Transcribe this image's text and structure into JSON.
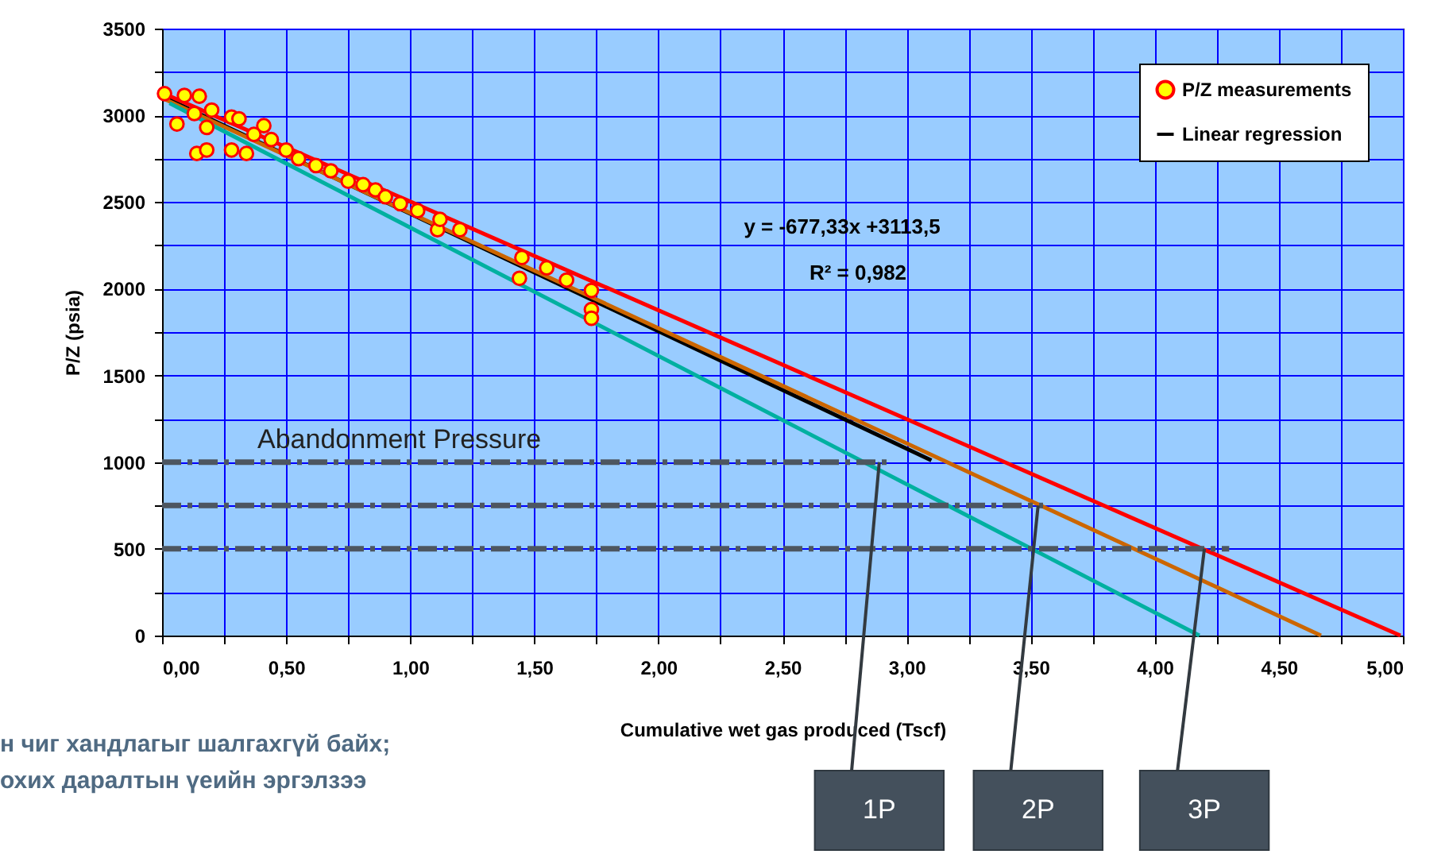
{
  "chart_data": {
    "type": "scatter",
    "xlabel": "Cumulative wet gas produced (Tscf)",
    "ylabel": "P/Z (psia)",
    "xlim": [
      0,
      5
    ],
    "ylim": [
      0,
      3500
    ],
    "xticks": [
      {
        "value": 0,
        "label": "0,00"
      },
      {
        "value": 0.25,
        "label": null
      },
      {
        "value": 0.5,
        "label": "0,50"
      },
      {
        "value": 0.75,
        "label": null
      },
      {
        "value": 1,
        "label": "1,00"
      },
      {
        "value": 1.25,
        "label": null
      },
      {
        "value": 1.5,
        "label": "1,50"
      },
      {
        "value": 1.75,
        "label": null
      },
      {
        "value": 2,
        "label": "2,00"
      },
      {
        "value": 2.25,
        "label": null
      },
      {
        "value": 2.5,
        "label": "2,50"
      },
      {
        "value": 2.75,
        "label": null
      },
      {
        "value": 3,
        "label": "3,00"
      },
      {
        "value": 3.25,
        "label": null
      },
      {
        "value": 3.5,
        "label": "3,50"
      },
      {
        "value": 3.75,
        "label": null
      },
      {
        "value": 4,
        "label": "4,00"
      },
      {
        "value": 4.25,
        "label": null
      },
      {
        "value": 4.5,
        "label": "4,50"
      },
      {
        "value": 4.75,
        "label": null
      },
      {
        "value": 5,
        "label": "5,00"
      }
    ],
    "yticks": [
      0,
      {
        "value": 250,
        "label": null
      },
      500,
      {
        "value": 750,
        "label": null
      },
      1000,
      {
        "value": 1250,
        "label": null
      },
      1500,
      {
        "value": 1750,
        "label": null
      },
      2000,
      {
        "value": 2250,
        "label": null
      },
      2500,
      {
        "value": 2750,
        "label": null
      },
      3000,
      {
        "value": 3250,
        "label": null
      },
      3500
    ],
    "grid": true,
    "legend": "top right",
    "series": [
      {
        "name": "P/Z measurements",
        "marker": "circle",
        "color": "#ffff00",
        "x": [
          0.01,
          0.09,
          0.15,
          0.06,
          0.14,
          0.18,
          0.28,
          0.34,
          0.2,
          0.28,
          0.31,
          0.41,
          0.18,
          0.13,
          0.37,
          0.44,
          0.5,
          0.55,
          0.62,
          0.68,
          0.75,
          0.81,
          0.86,
          0.9,
          0.96,
          1.03,
          1.11,
          1.12,
          1.2,
          1.44,
          1.45,
          1.55,
          1.63,
          1.73,
          1.73,
          1.73
        ],
        "values": [
          3125,
          3115,
          3110,
          2950,
          2780,
          2800,
          2800,
          2780,
          3030,
          2990,
          2980,
          2940,
          2930,
          3010,
          2890,
          2860,
          2800,
          2750,
          2710,
          2680,
          2620,
          2600,
          2570,
          2530,
          2490,
          2450,
          2340,
          2400,
          2340,
          2060,
          2180,
          2120,
          2050,
          1990,
          1880,
          1830
        ]
      },
      {
        "name": "Linear regression",
        "type": "line",
        "color": "#000000",
        "x": [
          0,
          3.1
        ],
        "values": [
          3110,
          1010
        ]
      },
      {
        "type": "line",
        "color": "#ff0000",
        "x": [
          0,
          4.99
        ],
        "values": [
          3130,
          0
        ]
      },
      {
        "type": "line",
        "color": "#cc6600",
        "x": [
          0,
          4.67
        ],
        "values": [
          3100,
          0
        ]
      },
      {
        "type": "line",
        "color": "#00b0a0",
        "x": [
          0.03,
          4.18
        ],
        "values": [
          3070,
          0
        ]
      },
      {
        "type": "line",
        "color": "#4d5660",
        "line_style": "dashed",
        "x": [
          0,
          2.94
        ],
        "values": [
          1000,
          1000
        ]
      },
      {
        "type": "line",
        "color": "#4d5660",
        "line_style": "dashed",
        "x": [
          0,
          3.55
        ],
        "values": [
          750,
          750
        ]
      },
      {
        "type": "line",
        "color": "#4d5660",
        "line_style": "dashed",
        "x": [
          0,
          4.3
        ],
        "values": [
          500,
          500
        ]
      }
    ],
    "annotations": [
      "y = -677,33x +3113,5",
      "R² = 0,982",
      "Abandonment Pressure",
      "н чиг хандлагыг шалгахгүй байх;",
      "охих даралтын үеийн эргэлзээ",
      {
        "text": "1P",
        "x": 2.89,
        "y": 1000
      },
      {
        "text": "2P",
        "x": 3.53,
        "y": 750
      },
      {
        "text": "3P",
        "x": 4.2,
        "y": 500
      }
    ]
  }
}
